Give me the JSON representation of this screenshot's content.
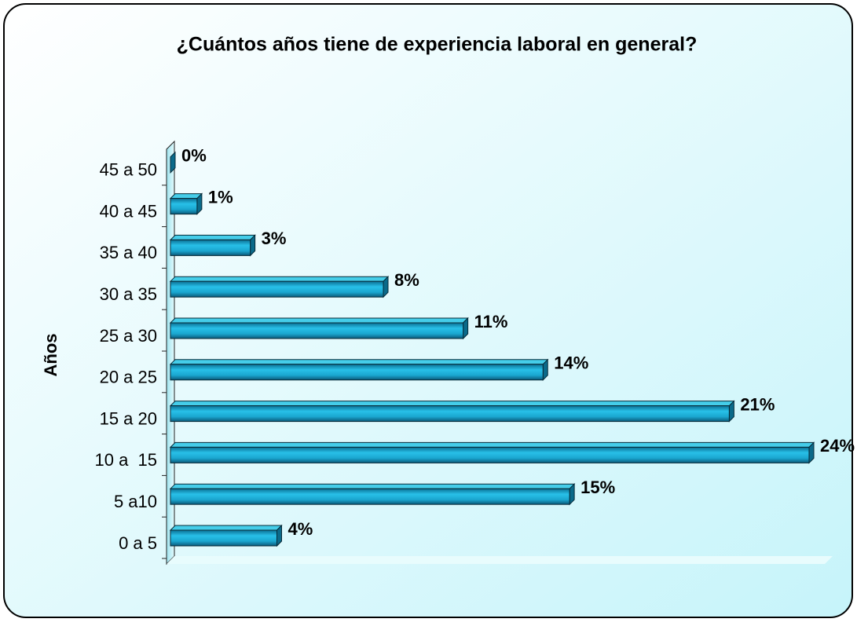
{
  "chart_data": {
    "type": "bar3d_horizontal",
    "title": "¿Cuántos años tiene de experiencia laboral en general?",
    "y_axis_label": "Años",
    "categories": [
      "0 a 5",
      "5 a10",
      "10 a  15",
      "15 a 20",
      "20 a 25",
      "25 a 30",
      "30 a 35",
      "35 a 40",
      "40 a 45",
      "45 a 50"
    ],
    "values": [
      4,
      15,
      24,
      21,
      14,
      11,
      8,
      3,
      1,
      0
    ],
    "value_labels": [
      "4%",
      "15%",
      "24%",
      "21%",
      "14%",
      "11%",
      "8%",
      "3%",
      "1%",
      "0%"
    ],
    "color": "#1aa6cf"
  }
}
